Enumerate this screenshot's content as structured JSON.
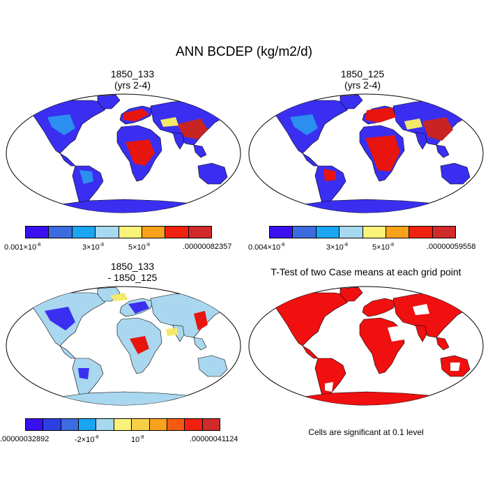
{
  "figure": {
    "title": "ANN BCDEP (kg/m2/d)"
  },
  "panels": [
    {
      "title_line1": "1850_133",
      "title_line2": "(yrs 2-4)"
    },
    {
      "title_line1": "1850_125",
      "title_line2": "(yrs 2-4)"
    },
    {
      "title_line1": "1850_133",
      "title_line2": "- 1850_125"
    },
    {
      "title_line1": "T-Test of two Case means at each grid point",
      "title_line2": ""
    }
  ],
  "colorbars": [
    {
      "colors": [
        "#3a10f0",
        "#3d6be0",
        "#1aa5f0",
        "#a6d8ef",
        "#fbf27a",
        "#f7a21a",
        "#f0210f",
        "#d12a2a"
      ],
      "labels": {
        "l1": "0.001",
        "l1_exp": "-8",
        "l2": "3",
        "l2_exp": "-8",
        "l3": "5",
        "l3_exp": "-8",
        "l4": ".00000082357"
      }
    },
    {
      "colors": [
        "#3a10f0",
        "#3d6be0",
        "#1aa5f0",
        "#a6d8ef",
        "#fbf27a",
        "#f7a21a",
        "#f0210f",
        "#d12a2a"
      ],
      "labels": {
        "l1": "0.004",
        "l1_exp": "-8",
        "l2": "3",
        "l2_exp": "-8",
        "l3": "5",
        "l3_exp": "-8",
        "l4": ".00000059558"
      }
    },
    {
      "colors": [
        "#3a10f0",
        "#2c3fe3",
        "#3d6be0",
        "#1aa5f0",
        "#a6d8ef",
        "#fbf27a",
        "#f7d04a",
        "#f7a21a",
        "#f55a12",
        "#f0210f",
        "#d12a2a"
      ],
      "labels": {
        "l1": ".00000032892",
        "l2": "-2",
        "l2_exp": "-8",
        "l3": "10",
        "l3_exp": "-8",
        "l4": ".00000041124"
      }
    }
  ],
  "colors": {
    "land_low": "#3a2ff0",
    "land_mid": "#2b8ff0",
    "hot_red": "#e8140e",
    "dark_red": "#c82424",
    "yellow": "#f3e86a",
    "ocean_pale": "#a9d7ef",
    "sig_red": "#f01010"
  },
  "note": "Cells are significant at 0.1 level",
  "times_symbol": "×"
}
